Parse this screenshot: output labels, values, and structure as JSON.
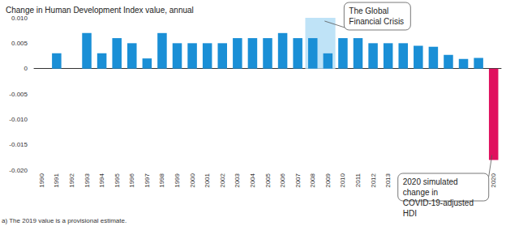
{
  "chart_data": {
    "type": "bar",
    "title": "Change in Human Development Index value, annual",
    "categories": [
      "1990",
      "1991",
      "1992",
      "1993",
      "1994",
      "1995",
      "1996",
      "1997",
      "1998",
      "1999",
      "2000",
      "2001",
      "2002",
      "2003",
      "2004",
      "2005",
      "2006",
      "2007",
      "2008",
      "2009",
      "2010",
      "2011",
      "2012",
      "2013",
      "2014",
      "2015",
      "2016",
      "2017",
      "2018",
      "2019ᵃ",
      "2020"
    ],
    "values": [
      null,
      0.003,
      0,
      0.007,
      0.003,
      0.006,
      0.005,
      0.002,
      0.007,
      0.005,
      0.005,
      0.005,
      0.005,
      0.006,
      0.006,
      0.006,
      0.007,
      0.006,
      0.006,
      0.003,
      0.006,
      0.006,
      0.005,
      0.005,
      0.005,
      0.0045,
      0.0043,
      0.0027,
      0.0019,
      0.0021,
      -0.018
    ],
    "colors": [
      "#1a8fd6",
      "#1a8fd6",
      "#1a8fd6",
      "#1a8fd6",
      "#1a8fd6",
      "#1a8fd6",
      "#1a8fd6",
      "#1a8fd6",
      "#1a8fd6",
      "#1a8fd6",
      "#1a8fd6",
      "#1a8fd6",
      "#1a8fd6",
      "#1a8fd6",
      "#1a8fd6",
      "#1a8fd6",
      "#1a8fd6",
      "#1a8fd6",
      "#1a8fd6",
      "#1a8fd6",
      "#1a8fd6",
      "#1a8fd6",
      "#1a8fd6",
      "#1a8fd6",
      "#1a8fd6",
      "#1a8fd6",
      "#1a8fd6",
      "#1a8fd6",
      "#1a8fd6",
      "#1a8fd6",
      "#e0105e"
    ],
    "ylim": [
      -0.02,
      0.01
    ],
    "yticks": [
      {
        "value": -0.02,
        "label": "-0.020"
      },
      {
        "value": -0.015,
        "label": "-0.015"
      },
      {
        "value": -0.01,
        "label": "-0.010"
      },
      -0.005,
      0,
      0.005,
      {
        "value": 0.01,
        "label": "0.010"
      }
    ],
    "grid": false,
    "annotations": [
      {
        "text": "The Global Financial Crisis",
        "x": [
          "2008",
          "2009"
        ],
        "color": "#bfe3f7"
      },
      {
        "text": "2020 simulated change in COVID-19-adjusted HDI",
        "x": "2020"
      }
    ],
    "footnote": "a) The 2019 value is a provisional estimate."
  }
}
